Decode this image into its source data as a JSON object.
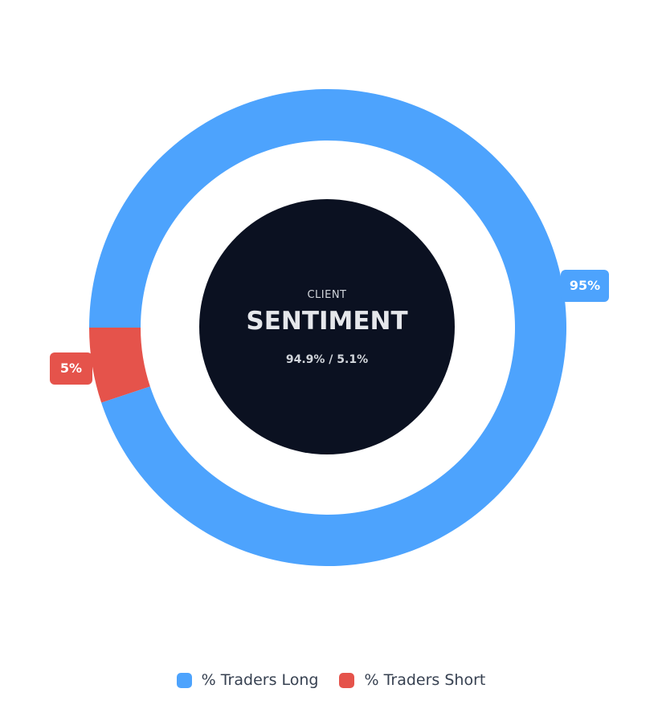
{
  "chart_data": {
    "type": "pie",
    "variant": "donut",
    "series": [
      {
        "name": "% Traders Long",
        "value": 94.9,
        "label": "95%",
        "color": "#4da3fd"
      },
      {
        "name": "% Traders Short",
        "value": 5.1,
        "label": "5%",
        "color": "#e5534b"
      }
    ],
    "center": {
      "subtitle": "CLIENT",
      "title": "SENTIMENT",
      "values_text": "94.9% / 5.1%"
    },
    "legend_position": "bottom"
  }
}
